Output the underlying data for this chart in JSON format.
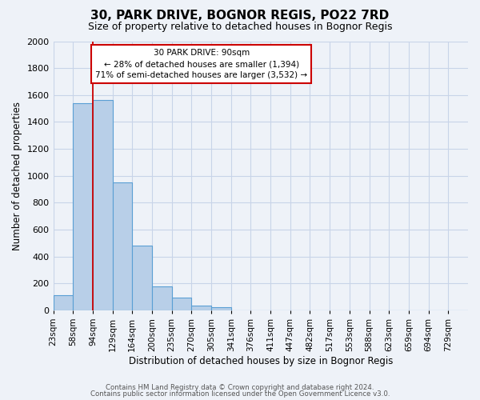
{
  "title": "30, PARK DRIVE, BOGNOR REGIS, PO22 7RD",
  "subtitle": "Size of property relative to detached houses in Bognor Regis",
  "xlabel": "Distribution of detached houses by size in Bognor Regis",
  "ylabel": "Number of detached properties",
  "bin_labels": [
    "23sqm",
    "58sqm",
    "94sqm",
    "129sqm",
    "164sqm",
    "200sqm",
    "235sqm",
    "270sqm",
    "305sqm",
    "341sqm",
    "376sqm",
    "411sqm",
    "447sqm",
    "482sqm",
    "517sqm",
    "553sqm",
    "588sqm",
    "623sqm",
    "659sqm",
    "694sqm",
    "729sqm"
  ],
  "bar_heights": [
    110,
    1540,
    1560,
    950,
    480,
    178,
    95,
    35,
    20,
    0,
    0,
    0,
    0,
    0,
    0,
    0,
    0,
    0,
    0,
    0,
    0
  ],
  "bar_color": "#b8cfe8",
  "bar_edge_color": "#5a9fd4",
  "marker_bin": 2,
  "marker_color": "#cc0000",
  "annotation_title": "30 PARK DRIVE: 90sqm",
  "annotation_line1": "← 28% of detached houses are smaller (1,394)",
  "annotation_line2": "71% of semi-detached houses are larger (3,532) →",
  "ylim": [
    0,
    2000
  ],
  "yticks": [
    0,
    200,
    400,
    600,
    800,
    1000,
    1200,
    1400,
    1600,
    1800,
    2000
  ],
  "footer1": "Contains HM Land Registry data © Crown copyright and database right 2024.",
  "footer2": "Contains public sector information licensed under the Open Government Licence v3.0.",
  "background_color": "#eef2f8",
  "plot_background": "#eef2f8"
}
